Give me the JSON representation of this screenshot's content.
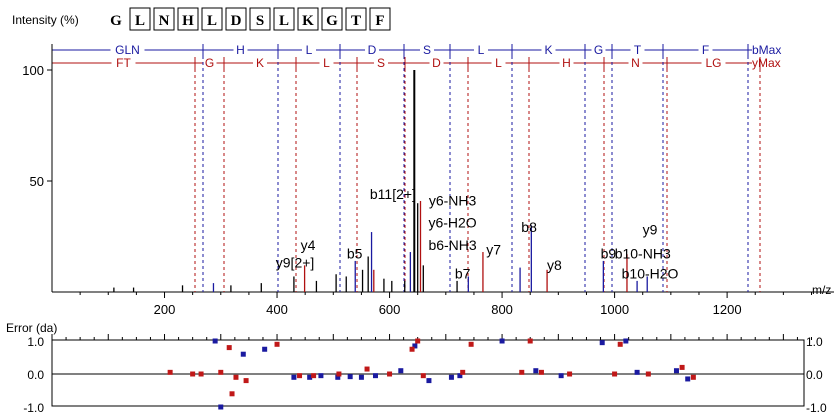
{
  "header": {
    "ylabel": "Intensity (%)",
    "sequence": [
      "G",
      "L",
      "N",
      "H",
      "L",
      "D",
      "S",
      "L",
      "K",
      "G",
      "T",
      "F"
    ]
  },
  "b_ladder": {
    "label": "bMax",
    "color": "#1a1aa0",
    "segments": [
      {
        "label": "GLN",
        "from": 52,
        "to": 203
      },
      {
        "label": "H",
        "from": 203,
        "to": 278
      },
      {
        "label": "L",
        "from": 278,
        "to": 340
      },
      {
        "label": "D",
        "from": 340,
        "to": 404
      },
      {
        "label": "S",
        "from": 404,
        "to": 450
      },
      {
        "label": "L",
        "from": 450,
        "to": 512
      },
      {
        "label": "K",
        "from": 512,
        "to": 585
      },
      {
        "label": "G",
        "from": 585,
        "to": 612
      },
      {
        "label": "T",
        "from": 612,
        "to": 663
      },
      {
        "label": "F",
        "from": 663,
        "to": 748
      }
    ],
    "marks": [
      203,
      278,
      340,
      404,
      450,
      512,
      585,
      612,
      663,
      748
    ]
  },
  "y_ladder": {
    "label": "yMax",
    "color": "#b01010",
    "segments": [
      {
        "label": "FT",
        "from": 52,
        "to": 195
      },
      {
        "label": "G",
        "from": 195,
        "to": 224
      },
      {
        "label": "K",
        "from": 224,
        "to": 296
      },
      {
        "label": "L",
        "from": 296,
        "to": 357
      },
      {
        "label": "S",
        "from": 357,
        "to": 405
      },
      {
        "label": "D",
        "from": 405,
        "to": 468
      },
      {
        "label": "L",
        "from": 468,
        "to": 529
      },
      {
        "label": "H",
        "from": 529,
        "to": 604
      },
      {
        "label": "N",
        "from": 604,
        "to": 667
      },
      {
        "label": "LG",
        "from": 667,
        "to": 760
      }
    ],
    "marks": [
      195,
      224,
      296,
      357,
      405,
      468,
      529,
      604,
      667,
      760
    ]
  },
  "chart_data": {
    "type": "bar",
    "xlabel": "m/z",
    "xlim": [
      0,
      1390
    ],
    "ylim": [
      0,
      105
    ],
    "xticks": [
      200,
      400,
      600,
      800,
      1000,
      1200
    ],
    "yticks": [
      50,
      100
    ],
    "peaks": [
      {
        "mz": 110,
        "intensity": 2,
        "color": "#000000"
      },
      {
        "mz": 145,
        "intensity": 2,
        "color": "#000000"
      },
      {
        "mz": 232,
        "intensity": 3,
        "color": "#000000"
      },
      {
        "mz": 287,
        "intensity": 4,
        "color": "#1a1aa0"
      },
      {
        "mz": 318,
        "intensity": 3,
        "color": "#000000"
      },
      {
        "mz": 372,
        "intensity": 4,
        "color": "#000000"
      },
      {
        "mz": 430,
        "intensity": 7,
        "color": "#000000"
      },
      {
        "mz": 449,
        "intensity": 12,
        "color": "#b01010"
      },
      {
        "mz": 470,
        "intensity": 5,
        "color": "#000000"
      },
      {
        "mz": 505,
        "intensity": 8,
        "color": "#000000"
      },
      {
        "mz": 523,
        "intensity": 7,
        "color": "#000000"
      },
      {
        "mz": 539,
        "intensity": 14,
        "color": "#1a1aa0"
      },
      {
        "mz": 552,
        "intensity": 10,
        "color": "#000000"
      },
      {
        "mz": 562,
        "intensity": 16,
        "color": "#000000"
      },
      {
        "mz": 568,
        "intensity": 27,
        "color": "#1a1aa0"
      },
      {
        "mz": 572,
        "intensity": 10,
        "color": "#b01010"
      },
      {
        "mz": 590,
        "intensity": 6,
        "color": "#000000"
      },
      {
        "mz": 604,
        "intensity": 5,
        "color": "#000000"
      },
      {
        "mz": 627,
        "intensity": 5,
        "color": "#000000"
      },
      {
        "mz": 637,
        "intensity": 18,
        "color": "#1a1aa0"
      },
      {
        "mz": 644,
        "intensity": 100,
        "color": "#000000"
      },
      {
        "mz": 650,
        "intensity": 40,
        "color": "#000000"
      },
      {
        "mz": 655,
        "intensity": 41,
        "color": "#b01010"
      },
      {
        "mz": 660,
        "intensity": 12,
        "color": "#000000"
      },
      {
        "mz": 720,
        "intensity": 5,
        "color": "#000000"
      },
      {
        "mz": 740,
        "intensity": 7,
        "color": "#1a1aa0"
      },
      {
        "mz": 766,
        "intensity": 18,
        "color": "#b01010"
      },
      {
        "mz": 832,
        "intensity": 11,
        "color": "#1a1aa0"
      },
      {
        "mz": 852,
        "intensity": 30,
        "color": "#1a1aa0"
      },
      {
        "mz": 880,
        "intensity": 10,
        "color": "#b01010"
      },
      {
        "mz": 980,
        "intensity": 14,
        "color": "#1a1aa0"
      },
      {
        "mz": 1022,
        "intensity": 17,
        "color": "#b01010"
      },
      {
        "mz": 1040,
        "intensity": 5,
        "color": "#1a1aa0"
      },
      {
        "mz": 1058,
        "intensity": 7,
        "color": "#1a1aa0"
      }
    ],
    "annotations": [
      {
        "text": "b11[2+]",
        "mz": 606,
        "y": 42
      },
      {
        "text": "y6-NH3",
        "mz": 712,
        "y": 39
      },
      {
        "text": "y6-H2O",
        "mz": 712,
        "y": 29
      },
      {
        "text": "b6-NH3",
        "mz": 712,
        "y": 19
      },
      {
        "text": "b8",
        "mz": 848,
        "y": 27
      },
      {
        "text": "y4",
        "mz": 455,
        "y": 19
      },
      {
        "text": "y9[2+]",
        "mz": 432,
        "y": 11
      },
      {
        "text": "b5",
        "mz": 538,
        "y": 15
      },
      {
        "text": "y7",
        "mz": 785,
        "y": 17
      },
      {
        "text": "b7",
        "mz": 730,
        "y": 6
      },
      {
        "text": "y8",
        "mz": 893,
        "y": 10
      },
      {
        "text": "b9",
        "mz": 989,
        "y": 15
      },
      {
        "text": "y9",
        "mz": 1063,
        "y": 26
      },
      {
        "text": "b10-NH3",
        "mz": 1050,
        "y": 15
      },
      {
        "text": "b10-H2O",
        "mz": 1063,
        "y": 6
      }
    ],
    "error": {
      "label": "Error (da)",
      "ylim": [
        -1.0,
        1.0
      ],
      "yticks": [
        "1.0",
        "0.0",
        "-1.0"
      ],
      "blue": [
        [
          290,
          1.0
        ],
        [
          340,
          0.6
        ],
        [
          378,
          0.75
        ],
        [
          430,
          -0.1
        ],
        [
          458,
          -0.1
        ],
        [
          478,
          -0.05
        ],
        [
          508,
          -0.1
        ],
        [
          530,
          -0.08
        ],
        [
          550,
          -0.1
        ],
        [
          575,
          -0.05
        ],
        [
          620,
          0.1
        ],
        [
          670,
          -0.2
        ],
        [
          710,
          -0.1
        ],
        [
          725,
          -0.05
        ],
        [
          800,
          1.0
        ],
        [
          860,
          0.1
        ],
        [
          905,
          -0.05
        ],
        [
          978,
          0.95
        ],
        [
          1020,
          1.0
        ],
        [
          1040,
          0.05
        ],
        [
          1110,
          0.1
        ],
        [
          1130,
          -0.15
        ],
        [
          300,
          -1.0
        ],
        [
          645,
          0.85
        ]
      ],
      "red": [
        [
          210,
          0.05
        ],
        [
          250,
          0.0
        ],
        [
          265,
          0.0
        ],
        [
          300,
          0.05
        ],
        [
          315,
          0.8
        ],
        [
          327,
          -0.1
        ],
        [
          345,
          -0.2
        ],
        [
          400,
          0.9
        ],
        [
          440,
          -0.05
        ],
        [
          465,
          -0.05
        ],
        [
          510,
          0.0
        ],
        [
          560,
          0.15
        ],
        [
          600,
          0.0
        ],
        [
          640,
          0.75
        ],
        [
          650,
          1.0
        ],
        [
          660,
          -0.05
        ],
        [
          730,
          0.05
        ],
        [
          745,
          0.9
        ],
        [
          835,
          0.05
        ],
        [
          850,
          1.0
        ],
        [
          870,
          0.05
        ],
        [
          920,
          0.0
        ],
        [
          1000,
          0.0
        ],
        [
          1010,
          0.9
        ],
        [
          1060,
          0.0
        ],
        [
          1120,
          0.2
        ],
        [
          1140,
          -0.1
        ],
        [
          320,
          -0.6
        ]
      ]
    }
  }
}
